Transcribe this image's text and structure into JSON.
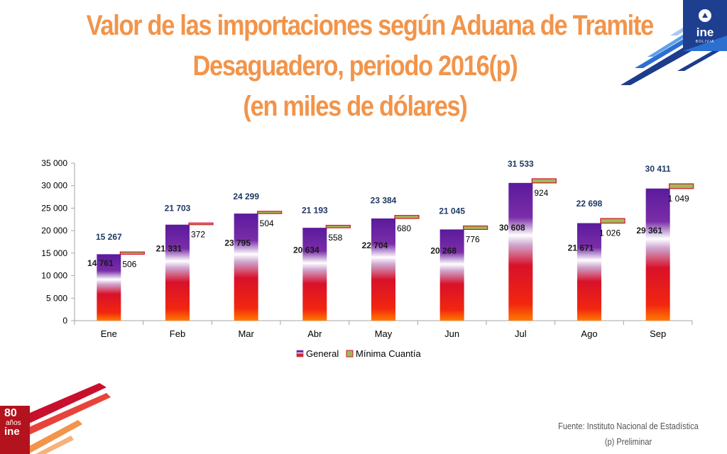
{
  "title_lines": [
    "Valor de las importaciones según Aduana de Tramite",
    "Desaguadero, periodo 2016(p)",
    "(en miles de dólares)"
  ],
  "logo_top_right": {
    "brand": "ine",
    "subtitle": "BOLIVIA"
  },
  "logo_bottom_left": {
    "number": "80",
    "years": "años",
    "brand": "ine"
  },
  "source": {
    "line1": "Fuente: Instituto Nacional de Estadística",
    "line2": "(p) Preliminar"
  },
  "colors": {
    "title": "#f2944a",
    "general_top": "#5b1a9c",
    "general_bottom": "#ff6a00",
    "minima_fill": "#9bbb59",
    "total_label": "#1f3864"
  },
  "chart_data": {
    "type": "bar",
    "stacked": true,
    "categories": [
      "Ene",
      "Feb",
      "Mar",
      "Abr",
      "May",
      "Jun",
      "Jul",
      "Ago",
      "Sep"
    ],
    "series": [
      {
        "name": "General",
        "values": [
          14761,
          21331,
          23795,
          20634,
          22704,
          20268,
          30608,
          21671,
          29361
        ],
        "labels": [
          "14 761",
          "21 331",
          "23 795",
          "20 634",
          "22 704",
          "20 268",
          "30 608",
          "21 671",
          "29 361"
        ]
      },
      {
        "name": "Mínima Cuantía",
        "values": [
          506,
          372,
          504,
          558,
          680,
          776,
          924,
          1026,
          1049
        ],
        "labels": [
          "506",
          "372",
          "504",
          "558",
          "680",
          "776",
          "924",
          "1 026",
          "1 049"
        ]
      }
    ],
    "totals": [
      15267,
      21703,
      24299,
      21193,
      23384,
      21045,
      31533,
      22698,
      30411
    ],
    "total_labels": [
      "15 267",
      "21 703",
      "24 299",
      "21 193",
      "23 384",
      "21 045",
      "31 533",
      "22 698",
      "30 411"
    ],
    "ylim": [
      0,
      35000
    ],
    "yticks": [
      0,
      5000,
      10000,
      15000,
      20000,
      25000,
      30000,
      35000
    ],
    "ytick_labels": [
      "0",
      "5 000",
      "10 000",
      "15 000",
      "20 000",
      "25 000",
      "30 000",
      "35 000"
    ],
    "legend": "bottom"
  }
}
